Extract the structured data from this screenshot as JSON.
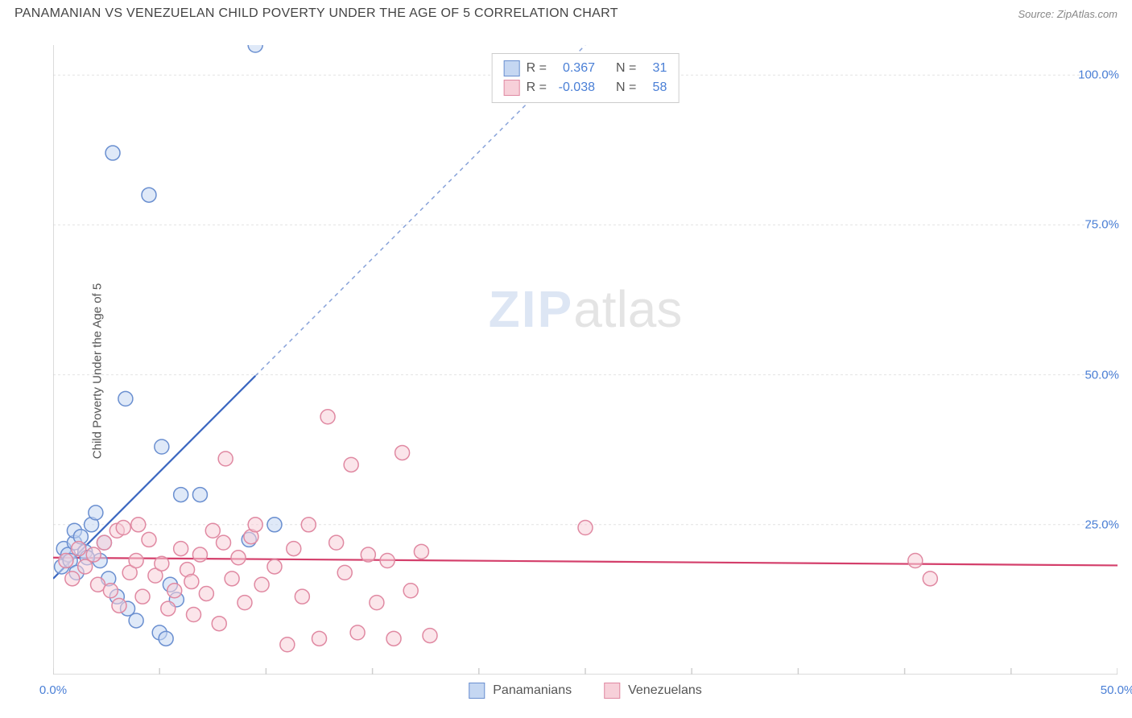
{
  "title": "PANAMANIAN VS VENEZUELAN CHILD POVERTY UNDER THE AGE OF 5 CORRELATION CHART",
  "source": "Source: ZipAtlas.com",
  "ylabel": "Child Poverty Under the Age of 5",
  "watermark": {
    "part1": "ZIP",
    "part2": "atlas"
  },
  "chart": {
    "type": "scatter",
    "background_color": "#ffffff",
    "grid_color": "#e2e2e2",
    "axis_color": "#cfcfcf",
    "tick_label_color": "#4a7fd6",
    "tick_fontsize": 15,
    "xlim": [
      0,
      50
    ],
    "ylim": [
      0,
      105
    ],
    "xticks": [
      0,
      5,
      10,
      15,
      20,
      25,
      30,
      35,
      40,
      45,
      50
    ],
    "xtick_labels": [
      "0.0%",
      "",
      "",
      "",
      "",
      "",
      "",
      "",
      "",
      "",
      "50.0%"
    ],
    "yticks": [
      25,
      50,
      75,
      100
    ],
    "ytick_labels": [
      "25.0%",
      "50.0%",
      "75.0%",
      "100.0%"
    ],
    "marker_radius": 9,
    "marker_opacity": 0.55,
    "marker_stroke_width": 1.5,
    "trend_line_width": 2.2,
    "trend_dash": "5,5"
  },
  "stats": {
    "rows": [
      {
        "fill": "#c5d7f2",
        "stroke": "#6a8fd0",
        "r_label": "R =",
        "r": "0.367",
        "n_label": "N =",
        "n": "31"
      },
      {
        "fill": "#f7d0d9",
        "stroke": "#e089a2",
        "r_label": "R =",
        "r": "-0.038",
        "n_label": "N =",
        "n": "58"
      }
    ]
  },
  "legend": {
    "items": [
      {
        "fill": "#c5d7f2",
        "stroke": "#6a8fd0",
        "label": "Panamanians"
      },
      {
        "fill": "#f7d0d9",
        "stroke": "#e089a2",
        "label": "Venezuelans"
      }
    ]
  },
  "series": {
    "panamanians": {
      "fill": "#c5d7f2",
      "stroke": "#6a8fd0",
      "trend_color": "#3a66c0",
      "trend": {
        "x1": 0,
        "y1": 16,
        "x2": 25,
        "y2": 105
      },
      "trend_solid_until_x": 9.5,
      "points": [
        [
          0.4,
          18
        ],
        [
          0.5,
          21
        ],
        [
          0.7,
          20
        ],
        [
          0.8,
          19
        ],
        [
          1.0,
          22
        ],
        [
          1.0,
          24
        ],
        [
          1.1,
          17
        ],
        [
          1.3,
          23
        ],
        [
          1.5,
          20.5
        ],
        [
          1.8,
          25
        ],
        [
          2.0,
          27
        ],
        [
          2.2,
          19
        ],
        [
          2.4,
          22
        ],
        [
          3.0,
          13
        ],
        [
          3.5,
          11
        ],
        [
          3.9,
          9
        ],
        [
          3.4,
          46
        ],
        [
          2.8,
          87
        ],
        [
          4.5,
          80
        ],
        [
          5.0,
          7
        ],
        [
          5.1,
          38
        ],
        [
          5.5,
          15
        ],
        [
          5.8,
          12.5
        ],
        [
          6.0,
          30
        ],
        [
          6.9,
          30
        ],
        [
          5.3,
          6
        ],
        [
          9.5,
          105
        ],
        [
          9.2,
          22.5
        ],
        [
          10.4,
          25
        ],
        [
          1.6,
          19.5
        ],
        [
          2.6,
          16
        ]
      ]
    },
    "venezuelans": {
      "fill": "#f7d0d9",
      "stroke": "#e089a2",
      "trend_color": "#d43f6b",
      "trend": {
        "x1": 0,
        "y1": 19.5,
        "x2": 50,
        "y2": 18.2
      },
      "points": [
        [
          0.6,
          19
        ],
        [
          0.9,
          16
        ],
        [
          1.2,
          21
        ],
        [
          1.5,
          18
        ],
        [
          1.9,
          20
        ],
        [
          2.1,
          15
        ],
        [
          2.4,
          22
        ],
        [
          2.7,
          14
        ],
        [
          3.0,
          24
        ],
        [
          3.3,
          24.5
        ],
        [
          3.6,
          17
        ],
        [
          3.9,
          19
        ],
        [
          4.2,
          13
        ],
        [
          4.5,
          22.5
        ],
        [
          4.8,
          16.5
        ],
        [
          5.1,
          18.5
        ],
        [
          5.4,
          11
        ],
        [
          5.7,
          14
        ],
        [
          6.0,
          21
        ],
        [
          6.3,
          17.5
        ],
        [
          6.6,
          10
        ],
        [
          6.9,
          20
        ],
        [
          7.2,
          13.5
        ],
        [
          7.5,
          24
        ],
        [
          7.8,
          8.5
        ],
        [
          8.1,
          36
        ],
        [
          8.4,
          16
        ],
        [
          8.7,
          19.5
        ],
        [
          9.0,
          12
        ],
        [
          9.3,
          23
        ],
        [
          9.8,
          15
        ],
        [
          10.4,
          18
        ],
        [
          11.0,
          5
        ],
        [
          11.3,
          21
        ],
        [
          11.7,
          13
        ],
        [
          12.0,
          25
        ],
        [
          12.5,
          6
        ],
        [
          12.9,
          43
        ],
        [
          13.3,
          22
        ],
        [
          13.7,
          17
        ],
        [
          14.0,
          35
        ],
        [
          14.3,
          7
        ],
        [
          14.8,
          20
        ],
        [
          15.2,
          12
        ],
        [
          15.7,
          19
        ],
        [
          16.0,
          6
        ],
        [
          16.4,
          37
        ],
        [
          16.8,
          14
        ],
        [
          17.3,
          20.5
        ],
        [
          17.7,
          6.5
        ],
        [
          25.0,
          24.5
        ],
        [
          40.5,
          19
        ],
        [
          41.2,
          16
        ],
        [
          8.0,
          22
        ],
        [
          9.5,
          25
        ],
        [
          4.0,
          25
        ],
        [
          6.5,
          15.5
        ],
        [
          3.1,
          11.5
        ]
      ]
    }
  }
}
